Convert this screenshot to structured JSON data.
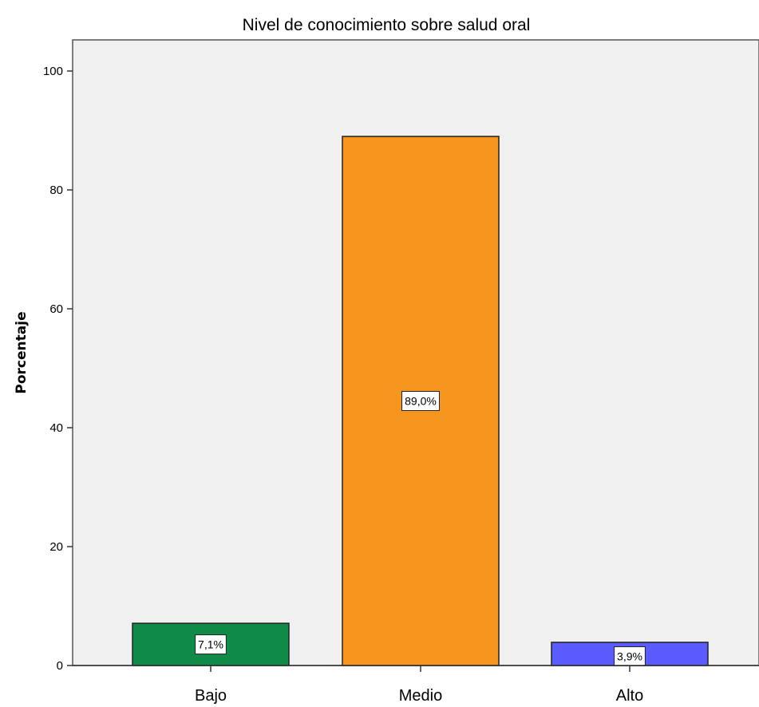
{
  "chart_data": {
    "type": "bar",
    "title": "Nivel de conocimiento sobre salud oral",
    "xlabel": "",
    "ylabel": "Porcentaje",
    "categories": [
      "Bajo",
      "Medio",
      "Alto"
    ],
    "values": [
      7.1,
      89.0,
      3.9
    ],
    "data_labels": [
      "7,1%",
      "89,0%",
      "3,9%"
    ],
    "colors": [
      "#0f8a47",
      "#f7961f",
      "#5a5cff"
    ],
    "ylim": [
      0,
      100
    ],
    "yticks": [
      0,
      20,
      40,
      60,
      80,
      100
    ],
    "grid": false,
    "plot_background": "#f0f0f0"
  }
}
